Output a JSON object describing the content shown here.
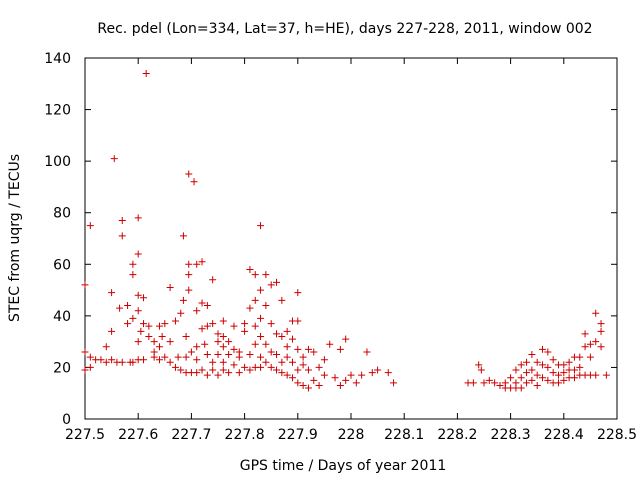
{
  "chart_data": {
    "type": "scatter",
    "title": "Rec. pdel (Lon=334, Lat=37, h=HE), days 227-228, 2011, window 002",
    "xlabel": "GPS time / Days of year 2011",
    "ylabel": "STEC from uqrg / TECUs",
    "xlim": [
      227.5,
      228.5
    ],
    "ylim": [
      0,
      140
    ],
    "x_ticks": [
      {
        "value": 227.5,
        "label": "227.5"
      },
      {
        "value": 227.6,
        "label": "227.6"
      },
      {
        "value": 227.7,
        "label": "227.7"
      },
      {
        "value": 227.8,
        "label": "227.8"
      },
      {
        "value": 227.9,
        "label": "227.9"
      },
      {
        "value": 228.0,
        "label": "228"
      },
      {
        "value": 228.1,
        "label": "228.1"
      },
      {
        "value": 228.2,
        "label": "228.2"
      },
      {
        "value": 228.3,
        "label": "228.3"
      },
      {
        "value": 228.4,
        "label": "228.4"
      },
      {
        "value": 228.5,
        "label": "228.5"
      }
    ],
    "y_ticks": [
      {
        "value": 0,
        "label": "0"
      },
      {
        "value": 20,
        "label": "20"
      },
      {
        "value": 40,
        "label": "40"
      },
      {
        "value": 60,
        "label": "60"
      },
      {
        "value": 80,
        "label": "80"
      },
      {
        "value": 100,
        "label": "100"
      },
      {
        "value": 120,
        "label": "120"
      },
      {
        "value": 140,
        "label": "140"
      }
    ],
    "grid": false,
    "legend": "none",
    "marker": "plus",
    "color": "#cc0000",
    "series": [
      {
        "points": [
          [
            227.5,
            52
          ],
          [
            227.5,
            19
          ],
          [
            227.5,
            26
          ],
          [
            227.51,
            75
          ],
          [
            227.51,
            20
          ],
          [
            227.51,
            24
          ],
          [
            227.52,
            23
          ],
          [
            227.53,
            23
          ],
          [
            227.54,
            28
          ],
          [
            227.54,
            22
          ],
          [
            227.55,
            23
          ],
          [
            227.55,
            49
          ],
          [
            227.55,
            34
          ],
          [
            227.555,
            101
          ],
          [
            227.56,
            22
          ],
          [
            227.565,
            43
          ],
          [
            227.57,
            77
          ],
          [
            227.57,
            71
          ],
          [
            227.57,
            22
          ],
          [
            227.58,
            37
          ],
          [
            227.58,
            44
          ],
          [
            227.585,
            22
          ],
          [
            227.59,
            60
          ],
          [
            227.59,
            56
          ],
          [
            227.59,
            39
          ],
          [
            227.59,
            22
          ],
          [
            227.6,
            78
          ],
          [
            227.6,
            64
          ],
          [
            227.6,
            48
          ],
          [
            227.6,
            42
          ],
          [
            227.6,
            30
          ],
          [
            227.6,
            23
          ],
          [
            227.605,
            34
          ],
          [
            227.61,
            47
          ],
          [
            227.61,
            37
          ],
          [
            227.615,
            134
          ],
          [
            227.61,
            23
          ],
          [
            227.62,
            36
          ],
          [
            227.62,
            32
          ],
          [
            227.63,
            30
          ],
          [
            227.63,
            26
          ],
          [
            227.63,
            24
          ],
          [
            227.64,
            36
          ],
          [
            227.64,
            28
          ],
          [
            227.64,
            23
          ],
          [
            227.645,
            32
          ],
          [
            227.65,
            24
          ],
          [
            227.65,
            37
          ],
          [
            227.66,
            51
          ],
          [
            227.66,
            30
          ],
          [
            227.66,
            22
          ],
          [
            227.67,
            38
          ],
          [
            227.67,
            20
          ],
          [
            227.675,
            24
          ],
          [
            227.68,
            41
          ],
          [
            227.68,
            19
          ],
          [
            227.685,
            71
          ],
          [
            227.685,
            46
          ],
          [
            227.69,
            32
          ],
          [
            227.69,
            24
          ],
          [
            227.69,
            18
          ],
          [
            227.695,
            95
          ],
          [
            227.695,
            60
          ],
          [
            227.695,
            56
          ],
          [
            227.695,
            50
          ],
          [
            227.7,
            26
          ],
          [
            227.7,
            18
          ],
          [
            227.705,
            92
          ],
          [
            227.71,
            60
          ],
          [
            227.71,
            42
          ],
          [
            227.71,
            28
          ],
          [
            227.71,
            23
          ],
          [
            227.71,
            18
          ],
          [
            227.72,
            61
          ],
          [
            227.72,
            45
          ],
          [
            227.72,
            35
          ],
          [
            227.72,
            19
          ],
          [
            227.725,
            29
          ],
          [
            227.73,
            44
          ],
          [
            227.73,
            36
          ],
          [
            227.73,
            25
          ],
          [
            227.73,
            17
          ],
          [
            227.74,
            54
          ],
          [
            227.74,
            37
          ],
          [
            227.74,
            22
          ],
          [
            227.74,
            19
          ],
          [
            227.75,
            33
          ],
          [
            227.75,
            30
          ],
          [
            227.75,
            25
          ],
          [
            227.75,
            17
          ],
          [
            227.76,
            38
          ],
          [
            227.76,
            32
          ],
          [
            227.76,
            28
          ],
          [
            227.76,
            22
          ],
          [
            227.76,
            19
          ],
          [
            227.77,
            30
          ],
          [
            227.77,
            25
          ],
          [
            227.77,
            18
          ],
          [
            227.78,
            36
          ],
          [
            227.78,
            27
          ],
          [
            227.78,
            21
          ],
          [
            227.79,
            26
          ],
          [
            227.79,
            24
          ],
          [
            227.79,
            18
          ],
          [
            227.8,
            37
          ],
          [
            227.8,
            34
          ],
          [
            227.8,
            20
          ],
          [
            227.81,
            58
          ],
          [
            227.81,
            43
          ],
          [
            227.81,
            25
          ],
          [
            227.81,
            19
          ],
          [
            227.82,
            56
          ],
          [
            227.82,
            46
          ],
          [
            227.82,
            36
          ],
          [
            227.82,
            29
          ],
          [
            227.82,
            20
          ],
          [
            227.83,
            75
          ],
          [
            227.83,
            50
          ],
          [
            227.83,
            39
          ],
          [
            227.83,
            32
          ],
          [
            227.83,
            24
          ],
          [
            227.83,
            20
          ],
          [
            227.84,
            56
          ],
          [
            227.84,
            44
          ],
          [
            227.84,
            29
          ],
          [
            227.84,
            22
          ],
          [
            227.85,
            52
          ],
          [
            227.85,
            37
          ],
          [
            227.85,
            26
          ],
          [
            227.85,
            20
          ],
          [
            227.86,
            53
          ],
          [
            227.86,
            33
          ],
          [
            227.86,
            25
          ],
          [
            227.86,
            19
          ],
          [
            227.87,
            46
          ],
          [
            227.87,
            32
          ],
          [
            227.87,
            22
          ],
          [
            227.87,
            18
          ],
          [
            227.88,
            34
          ],
          [
            227.88,
            28
          ],
          [
            227.88,
            24
          ],
          [
            227.88,
            17
          ],
          [
            227.89,
            38
          ],
          [
            227.89,
            31
          ],
          [
            227.89,
            22
          ],
          [
            227.89,
            16
          ],
          [
            227.9,
            49
          ],
          [
            227.9,
            38
          ],
          [
            227.9,
            27
          ],
          [
            227.9,
            19
          ],
          [
            227.9,
            14
          ],
          [
            227.91,
            24
          ],
          [
            227.91,
            21
          ],
          [
            227.91,
            13
          ],
          [
            227.92,
            27
          ],
          [
            227.92,
            19
          ],
          [
            227.92,
            12
          ],
          [
            227.93,
            26
          ],
          [
            227.93,
            15
          ],
          [
            227.94,
            20
          ],
          [
            227.94,
            13
          ],
          [
            227.95,
            23
          ],
          [
            227.95,
            17
          ],
          [
            227.96,
            29
          ],
          [
            227.97,
            16
          ],
          [
            227.98,
            27
          ],
          [
            227.98,
            13
          ],
          [
            227.99,
            31
          ],
          [
            227.99,
            15
          ],
          [
            228.0,
            17
          ],
          [
            228.01,
            14
          ],
          [
            228.02,
            17
          ],
          [
            228.03,
            26
          ],
          [
            228.04,
            18
          ],
          [
            228.05,
            19
          ],
          [
            228.07,
            18
          ],
          [
            228.08,
            14
          ],
          [
            228.22,
            14
          ],
          [
            228.23,
            14
          ],
          [
            228.24,
            21
          ],
          [
            228.245,
            19
          ],
          [
            228.25,
            14
          ],
          [
            228.26,
            15
          ],
          [
            228.27,
            14
          ],
          [
            228.28,
            13
          ],
          [
            228.29,
            14
          ],
          [
            228.29,
            12
          ],
          [
            228.3,
            16
          ],
          [
            228.3,
            12
          ],
          [
            228.31,
            19
          ],
          [
            228.31,
            14
          ],
          [
            228.31,
            12
          ],
          [
            228.32,
            21
          ],
          [
            228.32,
            16
          ],
          [
            228.32,
            12
          ],
          [
            228.33,
            22
          ],
          [
            228.33,
            18
          ],
          [
            228.33,
            14
          ],
          [
            228.34,
            25
          ],
          [
            228.34,
            19
          ],
          [
            228.34,
            15
          ],
          [
            228.35,
            22
          ],
          [
            228.35,
            17
          ],
          [
            228.35,
            13
          ],
          [
            228.36,
            27
          ],
          [
            228.36,
            21
          ],
          [
            228.36,
            16
          ],
          [
            228.37,
            26
          ],
          [
            228.37,
            20
          ],
          [
            228.37,
            15
          ],
          [
            228.38,
            23
          ],
          [
            228.38,
            18
          ],
          [
            228.38,
            14
          ],
          [
            228.39,
            21
          ],
          [
            228.39,
            17
          ],
          [
            228.39,
            14
          ],
          [
            228.4,
            21
          ],
          [
            228.4,
            18
          ],
          [
            228.4,
            15
          ],
          [
            228.41,
            22
          ],
          [
            228.41,
            19
          ],
          [
            228.41,
            16
          ],
          [
            228.42,
            24
          ],
          [
            228.42,
            19
          ],
          [
            228.42,
            16
          ],
          [
            228.43,
            24
          ],
          [
            228.43,
            20
          ],
          [
            228.43,
            17
          ],
          [
            228.44,
            33
          ],
          [
            228.44,
            28
          ],
          [
            228.44,
            17
          ],
          [
            228.45,
            29
          ],
          [
            228.45,
            24
          ],
          [
            228.45,
            17
          ],
          [
            228.46,
            41
          ],
          [
            228.46,
            30
          ],
          [
            228.46,
            17
          ],
          [
            228.47,
            37
          ],
          [
            228.47,
            34
          ],
          [
            228.47,
            28
          ],
          [
            228.48,
            17
          ]
        ]
      }
    ]
  }
}
